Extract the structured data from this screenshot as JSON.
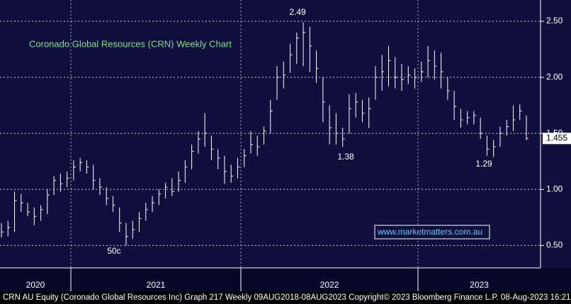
{
  "chart_data": {
    "type": "ohlc",
    "title": "Coronado Global Resources (CRN) Weekly Chart",
    "website": "www.marketmatters.com.au",
    "footer": "CRN AU Equity (Coronado Global Resources Inc) Graph 217  Weekly 09AUG2018-08AUG2023 Copyright© 2023 Bloomberg Finance L.P. 08-Aug-2023 16:21:55",
    "years": [
      "2020",
      "2021",
      "2022",
      "2023"
    ],
    "annotations": [
      "2.49",
      "1.38",
      "1.29",
      "50c"
    ],
    "color": "#ffffff",
    "grid": true,
    "ylim": [
      0.3,
      2.69
    ],
    "yticks": [
      {
        "value": 0.5,
        "label": "0.50"
      },
      {
        "value": 1.0,
        "label": "1.00"
      },
      {
        "value": 1.5,
        "label": "1.50"
      },
      {
        "value": 2.0,
        "label": "2.00"
      },
      {
        "value": 2.5,
        "label": "2.50"
      }
    ],
    "high": [
      0.7,
      0.72,
      0.98,
      0.96,
      0.88,
      0.84,
      0.86,
      1.0,
      1.12,
      1.14,
      1.16,
      1.26,
      1.28,
      1.26,
      1.22,
      1.1,
      1.02,
      0.94,
      0.84,
      0.7,
      0.72,
      0.8,
      0.88,
      0.94,
      1.0,
      1.06,
      1.1,
      1.16,
      1.26,
      1.4,
      1.52,
      1.68,
      1.48,
      1.36,
      1.3,
      1.22,
      1.28,
      1.36,
      1.52,
      1.48,
      1.56,
      1.8,
      2.1,
      2.14,
      2.3,
      2.4,
      2.49,
      2.45,
      2.24,
      2.0,
      1.75,
      1.68,
      1.55,
      1.85,
      1.86,
      1.8,
      1.82,
      2.1,
      2.2,
      2.28,
      2.18,
      2.12,
      2.1,
      2.08,
      2.14,
      2.28,
      2.24,
      2.22,
      2.0,
      1.88,
      1.72,
      1.7,
      1.7,
      1.64,
      1.48,
      1.44,
      1.56,
      1.62,
      1.75,
      1.76,
      1.66
    ],
    "low": [
      0.57,
      0.58,
      0.62,
      0.8,
      0.76,
      0.68,
      0.72,
      0.78,
      0.95,
      0.98,
      1.02,
      1.08,
      1.16,
      1.14,
      1.0,
      0.95,
      0.86,
      0.8,
      0.62,
      0.5,
      0.56,
      0.62,
      0.72,
      0.8,
      0.86,
      0.92,
      0.94,
      0.98,
      1.06,
      1.18,
      1.32,
      1.38,
      1.26,
      1.18,
      1.05,
      1.06,
      1.1,
      1.2,
      1.32,
      1.3,
      1.4,
      1.5,
      1.8,
      1.9,
      2.04,
      2.12,
      2.1,
      2.05,
      1.95,
      1.6,
      1.4,
      1.4,
      1.38,
      1.5,
      1.64,
      1.6,
      1.55,
      1.8,
      1.88,
      1.92,
      1.9,
      1.88,
      1.94,
      1.9,
      1.96,
      2.0,
      1.98,
      1.9,
      1.8,
      1.62,
      1.55,
      1.58,
      1.58,
      1.45,
      1.3,
      1.29,
      1.38,
      1.48,
      1.52,
      1.62,
      1.44
    ],
    "close": [
      0.62,
      0.66,
      0.9,
      0.88,
      0.8,
      0.76,
      0.82,
      0.95,
      1.08,
      1.05,
      1.1,
      1.2,
      1.24,
      1.2,
      1.08,
      1.02,
      0.92,
      0.86,
      0.7,
      0.58,
      0.64,
      0.74,
      0.82,
      0.88,
      0.96,
      1.02,
      0.98,
      1.08,
      1.2,
      1.34,
      1.45,
      1.5,
      1.36,
      1.28,
      1.16,
      1.12,
      1.2,
      1.3,
      1.4,
      1.38,
      1.52,
      1.7,
      2.0,
      2.02,
      2.2,
      2.35,
      2.4,
      2.28,
      2.08,
      1.78,
      1.55,
      1.5,
      1.45,
      1.72,
      1.78,
      1.68,
      1.72,
      2.0,
      2.05,
      2.15,
      2.0,
      1.98,
      2.02,
      2.0,
      2.05,
      2.15,
      2.1,
      2.05,
      1.88,
      1.74,
      1.62,
      1.64,
      1.66,
      1.5,
      1.36,
      1.38,
      1.5,
      1.56,
      1.62,
      1.7,
      1.455
    ]
  }
}
